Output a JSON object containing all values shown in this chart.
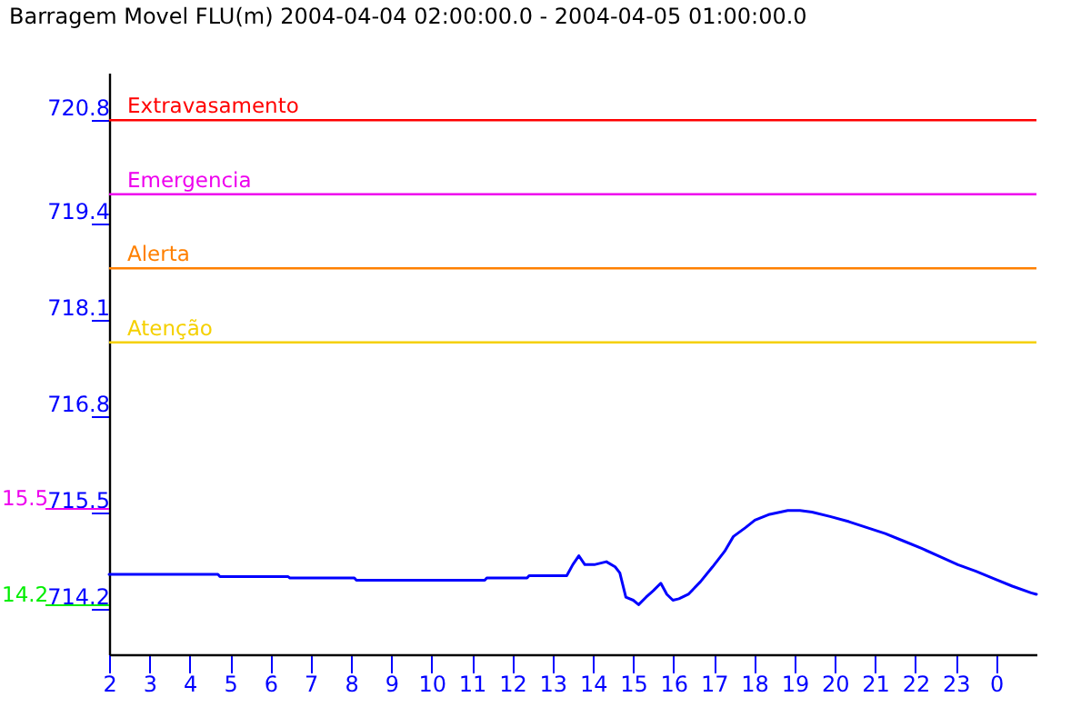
{
  "chart_data": {
    "type": "line",
    "title": "Barragem Movel FLU(m) 2004-04-04 02:00:00.0 - 2004-04-05 01:00:00.0",
    "series": [
      {
        "color": "#0000ff",
        "x": [
          "2004-04-04T02:00",
          "2004-04-04T04:42",
          "2004-04-04T04:45",
          "2004-04-04T06:26",
          "2004-04-04T06:29",
          "2004-04-04T08:05",
          "2004-04-04T08:08",
          "2004-04-04T11:19",
          "2004-04-04T11:22",
          "2004-04-04T12:22",
          "2004-04-04T12:25",
          "2004-04-04T13:21",
          "2004-04-04T13:30",
          "2004-04-04T13:39",
          "2004-04-04T13:48",
          "2004-04-04T14:02",
          "2004-04-04T14:20",
          "2004-04-04T14:33",
          "2004-04-04T14:40",
          "2004-04-04T14:49",
          "2004-04-04T15:00",
          "2004-04-04T15:08",
          "2004-04-04T15:19",
          "2004-04-04T15:30",
          "2004-04-04T15:41",
          "2004-04-04T15:50",
          "2004-04-04T15:59",
          "2004-04-04T16:08",
          "2004-04-04T16:22",
          "2004-04-04T16:40",
          "2004-04-04T16:58",
          "2004-04-04T17:16",
          "2004-04-04T17:29",
          "2004-04-04T17:47",
          "2004-04-04T18:01",
          "2004-04-04T18:23",
          "2004-04-04T18:50",
          "2004-04-04T19:08",
          "2004-04-04T19:26",
          "2004-04-04T19:53",
          "2004-04-04T20:21",
          "2004-04-04T20:48",
          "2004-04-04T21:15",
          "2004-04-04T21:42",
          "2004-04-04T22:09",
          "2004-04-04T22:36",
          "2004-04-04T23:03",
          "2004-04-04T23:30",
          "2004-04-04T23:57",
          "2004-04-05T00:24",
          "2004-04-05T00:52",
          "2004-04-05T01:00"
        ],
        "values": [
          714.67,
          714.67,
          714.64,
          714.64,
          714.62,
          714.62,
          714.59,
          714.59,
          714.62,
          714.62,
          714.65,
          714.65,
          714.8,
          714.92,
          714.8,
          714.8,
          714.84,
          714.77,
          714.69,
          714.36,
          714.32,
          714.26,
          714.36,
          714.45,
          714.55,
          714.4,
          714.32,
          714.34,
          714.4,
          714.57,
          714.77,
          714.98,
          715.18,
          715.3,
          715.4,
          715.48,
          715.53,
          715.53,
          715.51,
          715.45,
          715.38,
          715.3,
          715.22,
          715.12,
          715.02,
          714.91,
          714.8,
          714.71,
          714.61,
          714.51,
          714.42,
          714.4
        ]
      }
    ],
    "xlim": [
      "2004-04-04T02:00",
      "2004-04-05T01:00"
    ],
    "xticks": [
      {
        "value": "2004-04-04T02:00",
        "label": "2"
      },
      {
        "value": "2004-04-04T03:00",
        "label": "3"
      },
      {
        "value": "2004-04-04T04:00",
        "label": "4"
      },
      {
        "value": "2004-04-04T05:00",
        "label": "5"
      },
      {
        "value": "2004-04-04T06:00",
        "label": "6"
      },
      {
        "value": "2004-04-04T07:00",
        "label": "7"
      },
      {
        "value": "2004-04-04T08:00",
        "label": "8"
      },
      {
        "value": "2004-04-04T09:00",
        "label": "9"
      },
      {
        "value": "2004-04-04T10:00",
        "label": "10"
      },
      {
        "value": "2004-04-04T11:00",
        "label": "11"
      },
      {
        "value": "2004-04-04T12:00",
        "label": "12"
      },
      {
        "value": "2004-04-04T13:00",
        "label": "13"
      },
      {
        "value": "2004-04-04T14:00",
        "label": "14"
      },
      {
        "value": "2004-04-04T15:00",
        "label": "15"
      },
      {
        "value": "2004-04-04T16:00",
        "label": "16"
      },
      {
        "value": "2004-04-04T17:00",
        "label": "17"
      },
      {
        "value": "2004-04-04T18:00",
        "label": "18"
      },
      {
        "value": "2004-04-04T19:00",
        "label": "19"
      },
      {
        "value": "2004-04-04T20:00",
        "label": "20"
      },
      {
        "value": "2004-04-04T21:00",
        "label": "21"
      },
      {
        "value": "2004-04-04T22:00",
        "label": "22"
      },
      {
        "value": "2004-04-04T23:00",
        "label": "23"
      },
      {
        "value": "2004-04-05T00:00",
        "label": "0"
      }
    ],
    "ylim": [
      713.59,
      721.44
    ],
    "yticks": [
      714.2,
      715.5,
      716.8,
      718.1,
      719.4,
      720.8
    ],
    "ref_lines": [
      {
        "axis": "y",
        "value": 720.8,
        "label": "Extravasamento",
        "color": "#ff0000"
      },
      {
        "axis": "y",
        "value": 719.8,
        "label": "Emergencia",
        "color": "#ee00ee"
      },
      {
        "axis": "y",
        "value": 718.8,
        "label": "Alerta",
        "color": "#ff8000"
      },
      {
        "axis": "y",
        "value": 717.8,
        "label": "Atenção",
        "color": "#f5d000"
      }
    ],
    "annotations": [
      "15.5",
      "14.2"
    ],
    "grid": false
  }
}
